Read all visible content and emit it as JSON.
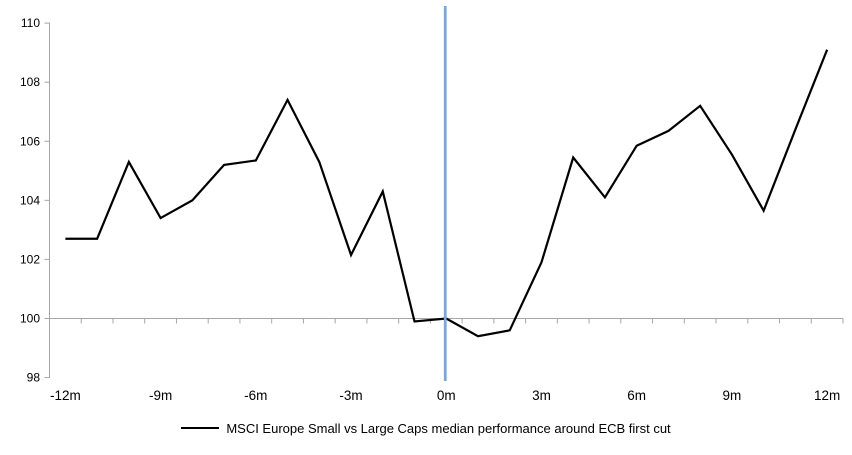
{
  "chart_data": {
    "type": "line",
    "title": "",
    "xlabel": "",
    "ylabel": "",
    "x": [
      -12,
      -11,
      -10,
      -9,
      -8,
      -7,
      -6,
      -5,
      -4,
      -3,
      -2,
      -1,
      0,
      1,
      2,
      3,
      4,
      5,
      6,
      7,
      8,
      9,
      10,
      11,
      12
    ],
    "x_tick_labels": [
      "-12m",
      "-9m",
      "-6m",
      "-3m",
      "0m",
      "3m",
      "6m",
      "9m",
      "12m"
    ],
    "x_tick_months": [
      -12,
      -9,
      -6,
      -3,
      0,
      3,
      6,
      9,
      12
    ],
    "y_ticks": [
      110,
      108,
      106,
      104,
      102,
      100,
      98
    ],
    "ylim": [
      98,
      110
    ],
    "baseline": 100,
    "grid": "off",
    "legend_position": "bottom",
    "series": [
      {
        "name": "MSCI Europe Small vs Large Caps median performance around ECB first cut",
        "color": "#000000",
        "values": [
          102.7,
          102.7,
          105.3,
          103.4,
          104.0,
          105.2,
          105.35,
          107.4,
          105.3,
          102.15,
          104.3,
          99.9,
          100.0,
          99.4,
          99.6,
          101.9,
          105.45,
          104.1,
          105.85,
          106.35,
          107.2,
          105.55,
          103.65,
          106.4,
          109.1
        ]
      }
    ],
    "event_line": {
      "month": 0,
      "color": "#7da7d9"
    },
    "axis_color": "#a6a6a6",
    "text_color": "#000000"
  }
}
